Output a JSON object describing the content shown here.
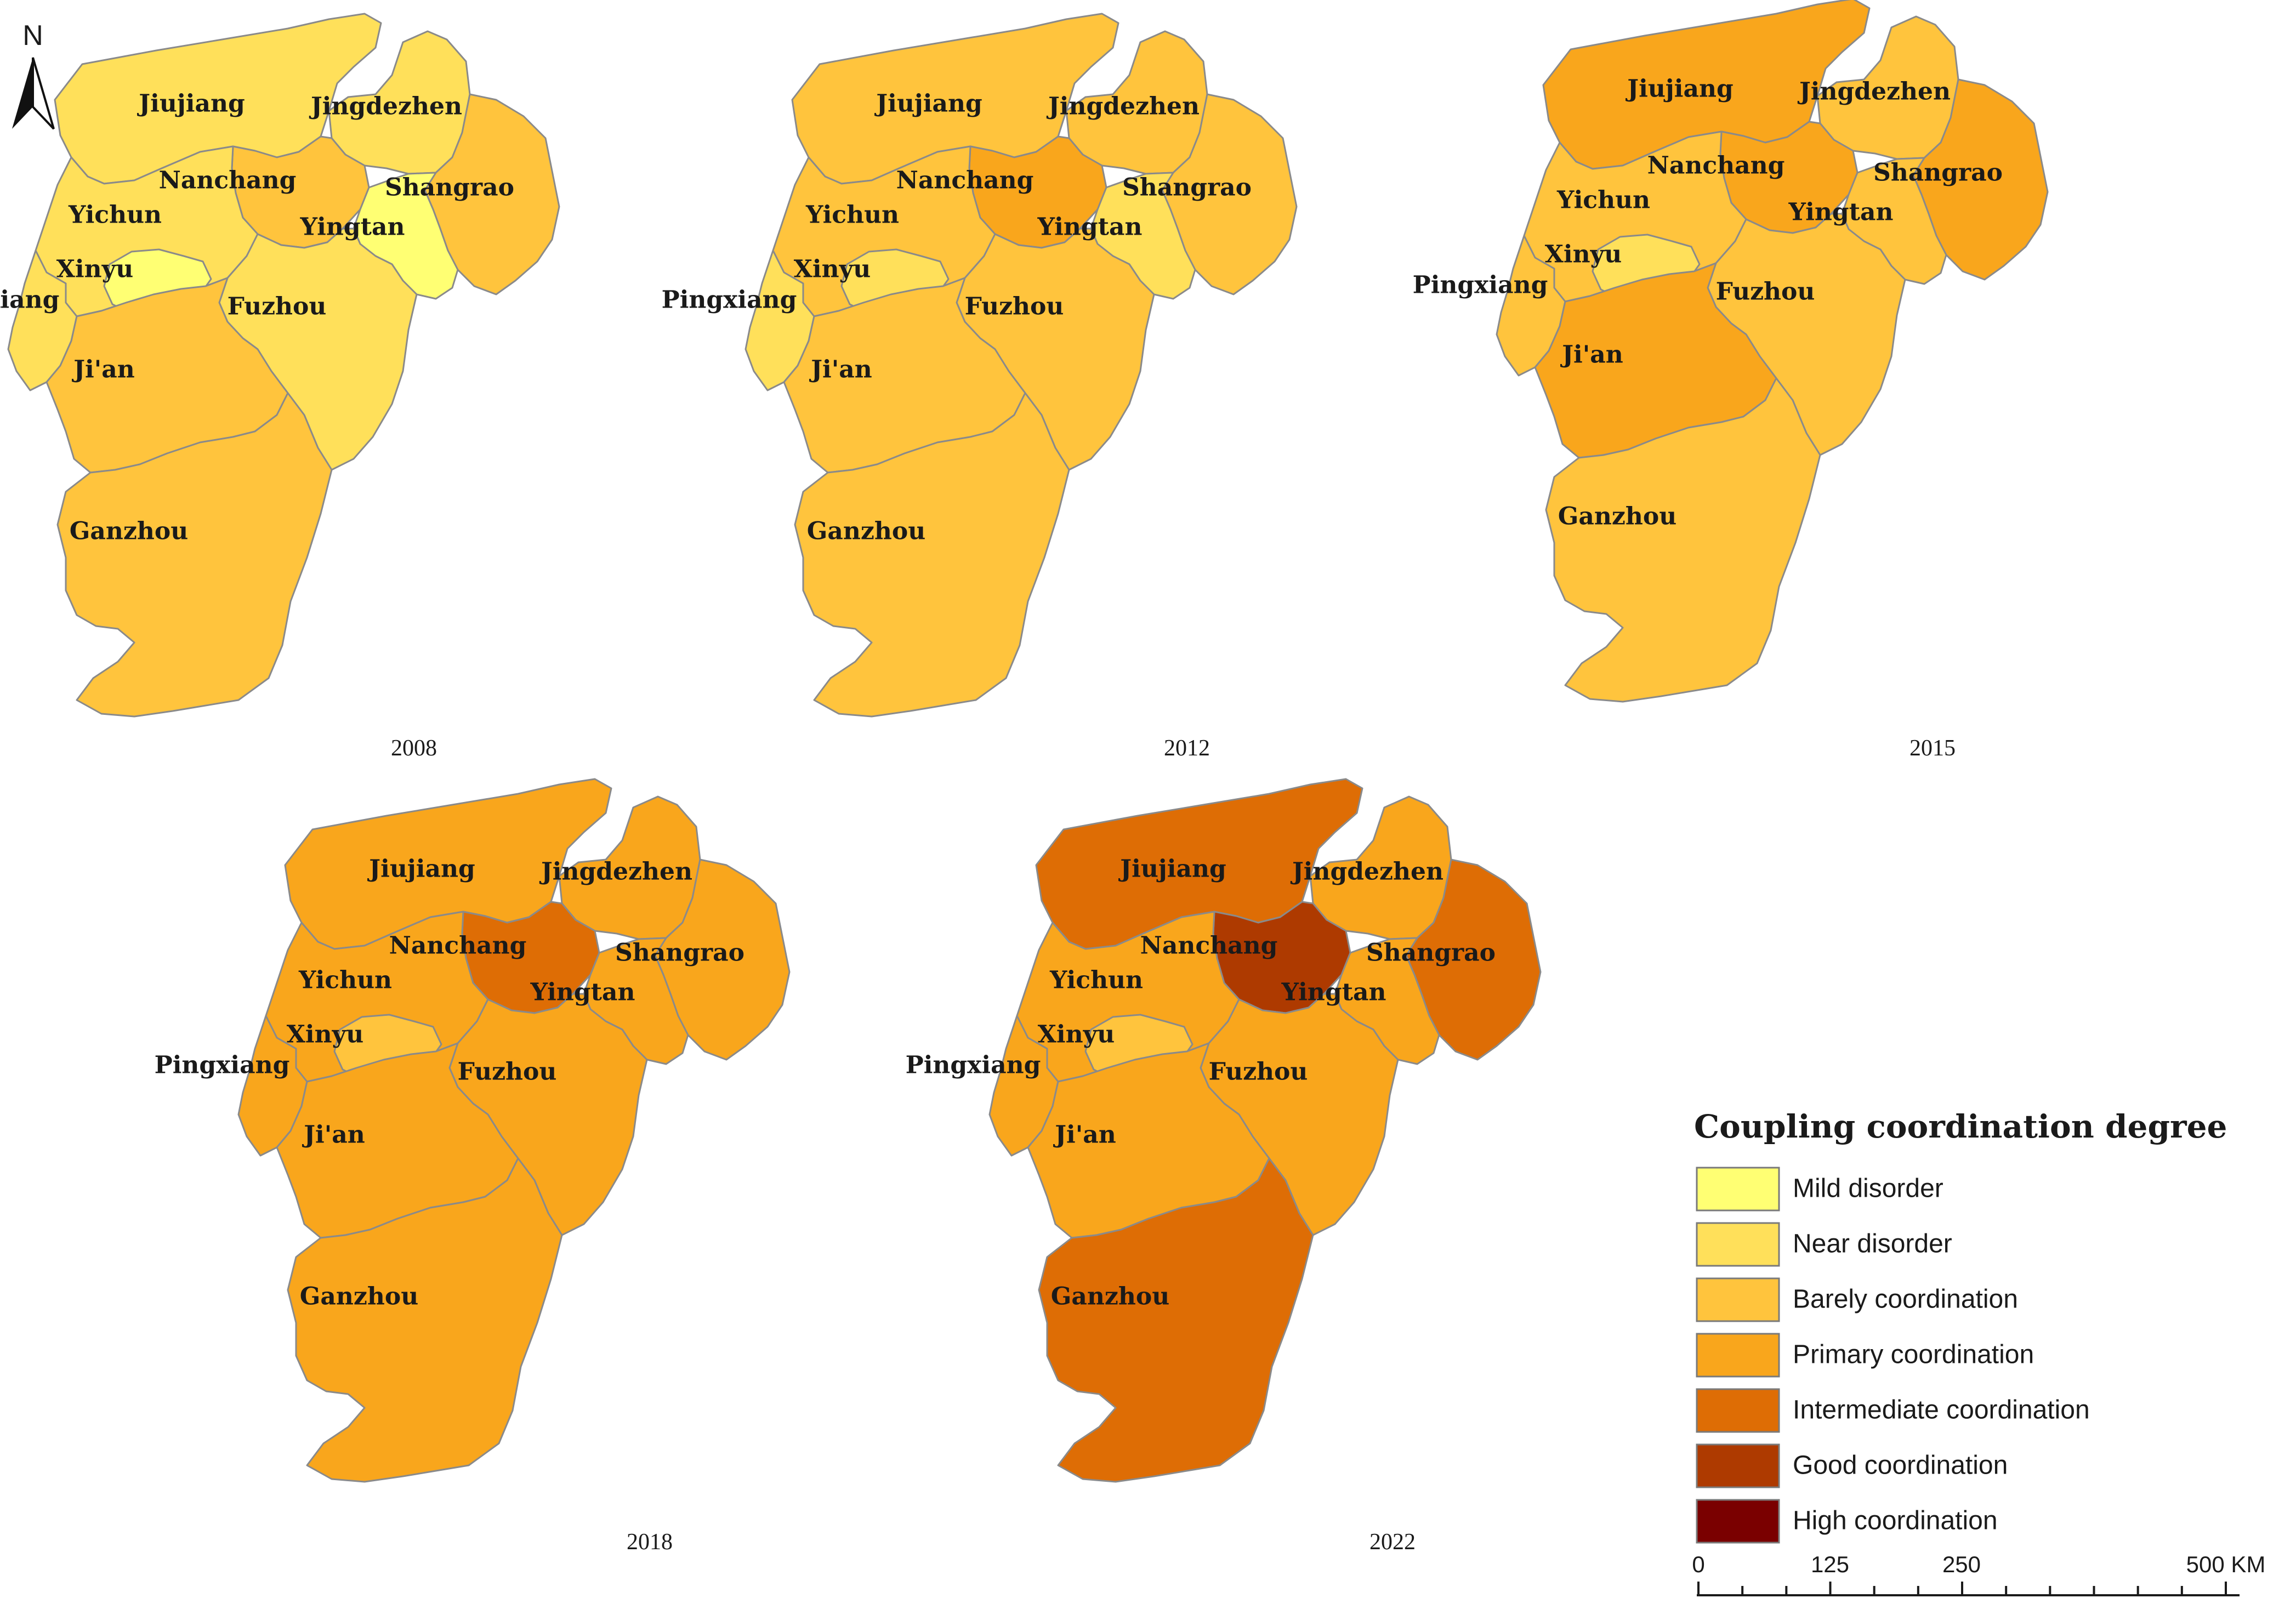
{
  "legend": {
    "title": "Coupling coordination degree",
    "classes": [
      {
        "key": "mild",
        "label": "Mild disorder",
        "color": "#FFFF73"
      },
      {
        "key": "near",
        "label": "Near disorder",
        "color": "#FFE05A"
      },
      {
        "key": "barely",
        "label": "Barely coordination",
        "color": "#FFC43D"
      },
      {
        "key": "primary",
        "label": "Primary coordination",
        "color": "#F9A61C"
      },
      {
        "key": "intermediate",
        "label": "Intermediate coordination",
        "color": "#DE6D05"
      },
      {
        "key": "good",
        "label": "Good coordination",
        "color": "#AE3A00"
      },
      {
        "key": "high",
        "label": "High coordination",
        "color": "#7A0000"
      }
    ]
  },
  "north_arrow": {
    "label": "N"
  },
  "scale_bar": {
    "ticks": [
      "0",
      "125",
      "250",
      "500 KM"
    ]
  },
  "cities": [
    "Jiujiang",
    "Jingdezhen",
    "Nanchang",
    "Shangrao",
    "Yichun",
    "Yingtan",
    "Xinyu",
    "Pingxiang",
    "Fuzhou",
    "Ji'an",
    "Ganzhou"
  ],
  "maps": [
    {
      "year": "2008",
      "classes": {
        "Jiujiang": "near",
        "Jingdezhen": "near",
        "Nanchang": "barely",
        "Shangrao": "barely",
        "Yichun": "near",
        "Yingtan": "mild",
        "Xinyu": "mild",
        "Pingxiang": "near",
        "Fuzhou": "near",
        "Ji'an": "barely",
        "Ganzhou": "barely"
      }
    },
    {
      "year": "2012",
      "classes": {
        "Jiujiang": "barely",
        "Jingdezhen": "barely",
        "Nanchang": "primary",
        "Shangrao": "barely",
        "Yichun": "barely",
        "Yingtan": "near",
        "Xinyu": "near",
        "Pingxiang": "near",
        "Fuzhou": "barely",
        "Ji'an": "barely",
        "Ganzhou": "barely"
      }
    },
    {
      "year": "2015",
      "classes": {
        "Jiujiang": "primary",
        "Jingdezhen": "barely",
        "Nanchang": "primary",
        "Shangrao": "primary",
        "Yichun": "barely",
        "Yingtan": "barely",
        "Xinyu": "near",
        "Pingxiang": "barely",
        "Fuzhou": "barely",
        "Ji'an": "primary",
        "Ganzhou": "barely"
      }
    },
    {
      "year": "2018",
      "classes": {
        "Jiujiang": "primary",
        "Jingdezhen": "primary",
        "Nanchang": "intermediate",
        "Shangrao": "primary",
        "Yichun": "primary",
        "Yingtan": "primary",
        "Xinyu": "barely",
        "Pingxiang": "primary",
        "Fuzhou": "primary",
        "Ji'an": "primary",
        "Ganzhou": "primary"
      }
    },
    {
      "year": "2022",
      "classes": {
        "Jiujiang": "intermediate",
        "Jingdezhen": "primary",
        "Nanchang": "good",
        "Shangrao": "intermediate",
        "Yichun": "primary",
        "Yingtan": "primary",
        "Xinyu": "barely",
        "Pingxiang": "primary",
        "Fuzhou": "primary",
        "Ji'an": "primary",
        "Ganzhou": "intermediate"
      }
    }
  ]
}
